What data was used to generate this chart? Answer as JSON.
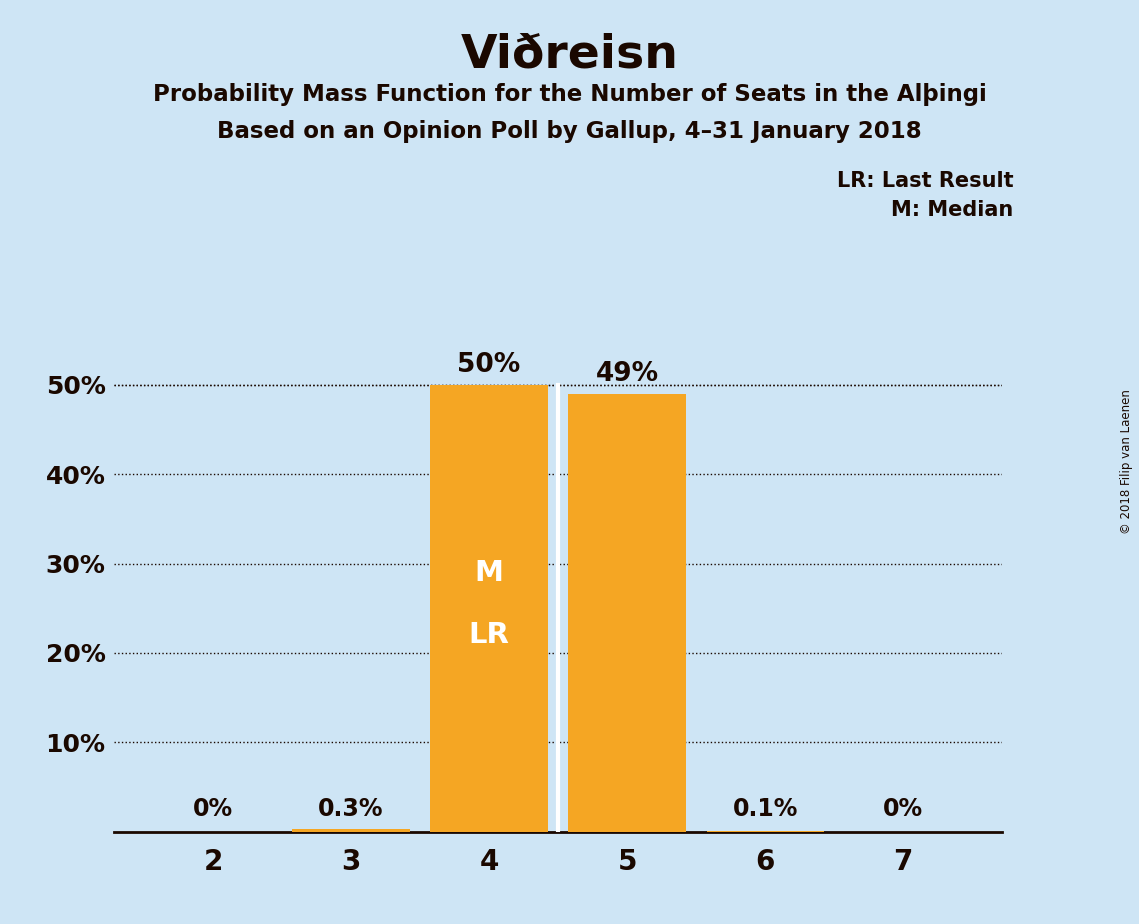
{
  "title": "Viðreisn",
  "subtitle1": "Probability Mass Function for the Number of Seats in the Alþingi",
  "subtitle2": "Based on an Opinion Poll by Gallup, 4–31 January 2018",
  "categories": [
    2,
    3,
    4,
    5,
    6,
    7
  ],
  "values": [
    0.0,
    0.003,
    0.5,
    0.49,
    0.001,
    0.0
  ],
  "bar_color": "#F5A623",
  "background_color": "#CEE5F5",
  "text_color": "#1a0800",
  "bar_labels": [
    "0%",
    "0.3%",
    "50%",
    "49%",
    "0.1%",
    "0%"
  ],
  "ylim": [
    0,
    0.6
  ],
  "yticks": [
    0.1,
    0.2,
    0.3,
    0.4,
    0.5
  ],
  "ytick_labels": [
    "10%",
    "20%",
    "30%",
    "40%",
    "50%"
  ],
  "legend_lr": "LR: Last Result",
  "legend_m": "M: Median",
  "copyright": "© 2018 Filip van Laenen",
  "dotted_line_y": 0.5,
  "bar_width": 0.85
}
